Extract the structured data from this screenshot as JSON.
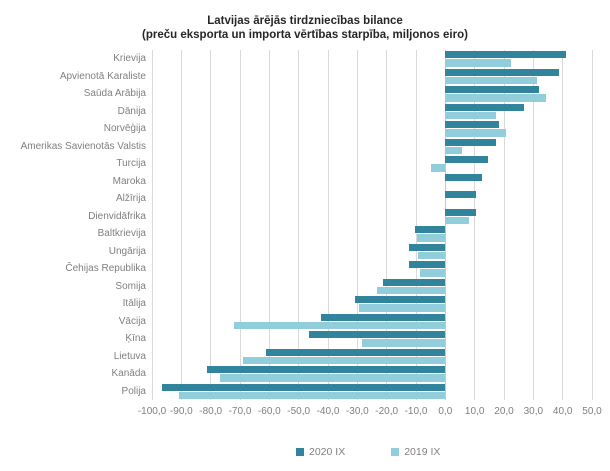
{
  "chart": {
    "title": "Latvijas ārējās tirdzniecības bilance",
    "subtitle": "(preču eksporta un importa vērtības starpība, miljonos eiro)"
  },
  "chart_data": {
    "type": "bar",
    "orientation": "horizontal",
    "title": "Latvijas ārējās tirdzniecības bilance",
    "subtitle": "(preču eksporta un importa vērtības starpība, miljonos eiro)",
    "xlabel": "",
    "ylabel": "",
    "xlim": [
      -100,
      50
    ],
    "grid": true,
    "legend_position": "bottom",
    "categories": [
      "Krievija",
      "Apvienotā Karaliste",
      "Saūda Arābija",
      "Dānija",
      "Norvēģija",
      "Amerikas Savienotās Valstis",
      "Turcija",
      "Maroka",
      "Alžīrija",
      "Dienvidāfrika",
      "Baltkrievija",
      "Ungārija",
      "Čehijas Republika",
      "Somija",
      "Itālija",
      "Vācija",
      "Ķīna",
      "Lietuva",
      "Kanāda",
      "Polija"
    ],
    "series": [
      {
        "name": "2020 IX",
        "color": "#31849B",
        "values": [
          41.2,
          38.9,
          31.8,
          26.9,
          18.3,
          17.4,
          14.6,
          12.6,
          10.6,
          10.6,
          -10.5,
          -12.3,
          -12.3,
          -21.4,
          -30.9,
          -42.3,
          -46.4,
          -61.1,
          -81.3,
          -96.6
        ]
      },
      {
        "name": "2019 IX",
        "color": "#92CDDC",
        "values": [
          22.5,
          31.3,
          34.4,
          17.2,
          20.6,
          5.8,
          -4.8,
          0.0,
          0.0,
          8.2,
          -9.5,
          -9.4,
          -8.5,
          -23.4,
          -29.6,
          -72.0,
          -28.5,
          -69.0,
          -76.7,
          -90.9
        ]
      }
    ],
    "x_tick_labels": [
      "-100,0",
      "-90,0",
      "-80,0",
      "-70,0",
      "-60,0",
      "-50,0",
      "-40,0",
      "-30,0",
      "-20,0",
      "-10,0",
      "0,0",
      "10,0",
      "20,0",
      "30,0",
      "40,0",
      "50,0"
    ],
    "gridline_color": "#d9d9d9",
    "label_color": "#808080"
  }
}
